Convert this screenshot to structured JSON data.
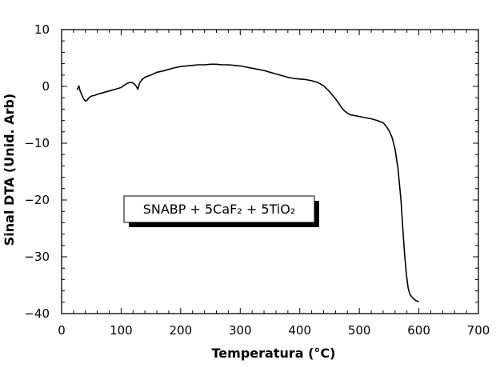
{
  "chart_data": {
    "type": "line",
    "title": "",
    "xlabel": "Temperatura (°C)",
    "ylabel": "Sinal DTA (Unid. Arb)",
    "xlim": [
      0,
      700
    ],
    "ylim": [
      -40,
      10
    ],
    "x_ticks": [
      "0",
      "100",
      "200",
      "300",
      "400",
      "500",
      "600",
      "700"
    ],
    "y_ticks": [
      "10",
      "0",
      "−10",
      "−20",
      "−30",
      "−40"
    ],
    "legend_box_text": "SNABP + 5CaF₂ + 5TiO₂",
    "grid": false,
    "series": [
      {
        "color": "#000000",
        "points": [
          [
            26,
            -0.6
          ],
          [
            29,
            0.1
          ],
          [
            31,
            -0.8
          ],
          [
            34,
            -1.5
          ],
          [
            37,
            -2.2
          ],
          [
            40,
            -2.6
          ],
          [
            43,
            -2.4
          ],
          [
            46,
            -2.0
          ],
          [
            50,
            -1.7
          ],
          [
            55,
            -1.6
          ],
          [
            60,
            -1.4
          ],
          [
            70,
            -1.1
          ],
          [
            80,
            -0.8
          ],
          [
            90,
            -0.5
          ],
          [
            100,
            -0.2
          ],
          [
            105,
            0.2
          ],
          [
            110,
            0.5
          ],
          [
            115,
            0.7
          ],
          [
            120,
            0.6
          ],
          [
            125,
            0.1
          ],
          [
            128,
            -0.5
          ],
          [
            131,
            0.6
          ],
          [
            135,
            1.2
          ],
          [
            140,
            1.6
          ],
          [
            150,
            2.0
          ],
          [
            160,
            2.5
          ],
          [
            170,
            2.7
          ],
          [
            180,
            3.0
          ],
          [
            190,
            3.3
          ],
          [
            200,
            3.5
          ],
          [
            210,
            3.6
          ],
          [
            220,
            3.7
          ],
          [
            230,
            3.8
          ],
          [
            240,
            3.8
          ],
          [
            250,
            3.9
          ],
          [
            260,
            3.9
          ],
          [
            270,
            3.8
          ],
          [
            280,
            3.8
          ],
          [
            290,
            3.7
          ],
          [
            300,
            3.6
          ],
          [
            310,
            3.4
          ],
          [
            320,
            3.2
          ],
          [
            330,
            3.0
          ],
          [
            340,
            2.8
          ],
          [
            350,
            2.5
          ],
          [
            360,
            2.2
          ],
          [
            370,
            1.9
          ],
          [
            380,
            1.6
          ],
          [
            390,
            1.4
          ],
          [
            400,
            1.3
          ],
          [
            410,
            1.2
          ],
          [
            420,
            1.0
          ],
          [
            430,
            0.7
          ],
          [
            440,
            0.1
          ],
          [
            450,
            -0.9
          ],
          [
            460,
            -2.2
          ],
          [
            465,
            -2.9
          ],
          [
            470,
            -3.7
          ],
          [
            475,
            -4.3
          ],
          [
            480,
            -4.7
          ],
          [
            485,
            -5.0
          ],
          [
            490,
            -5.1
          ],
          [
            500,
            -5.3
          ],
          [
            510,
            -5.5
          ],
          [
            520,
            -5.7
          ],
          [
            530,
            -6.0
          ],
          [
            540,
            -6.4
          ],
          [
            545,
            -7.0
          ],
          [
            550,
            -7.8
          ],
          [
            555,
            -9.0
          ],
          [
            560,
            -11.0
          ],
          [
            565,
            -14.5
          ],
          [
            570,
            -20.0
          ],
          [
            573,
            -25.0
          ],
          [
            576,
            -29.5
          ],
          [
            579,
            -33.0
          ],
          [
            582,
            -35.5
          ],
          [
            585,
            -36.6
          ],
          [
            590,
            -37.3
          ],
          [
            595,
            -37.7
          ],
          [
            600,
            -37.9
          ]
        ]
      }
    ]
  }
}
